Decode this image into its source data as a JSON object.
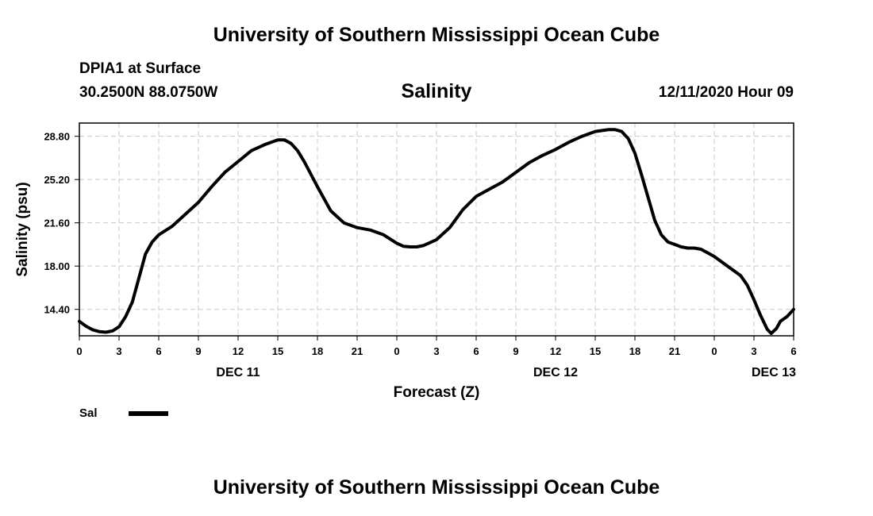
{
  "header": {
    "title": "University of Southern Mississippi Ocean Cube",
    "station": "DPIA1 at Surface",
    "coords": "30.2500N 88.0750W",
    "timestamp": "12/11/2020 Hour 09"
  },
  "footer": {
    "title": "University of Southern Mississippi Ocean Cube"
  },
  "colors": {
    "line": "#000000",
    "grid": "#c8c8c8",
    "background": "#ffffff"
  },
  "chart_data": {
    "type": "line",
    "title": "Salinity",
    "xlabel": "Forecast (Z)",
    "ylabel": "Salinity (psu)",
    "grid": true,
    "legend_position": "bottom-left",
    "xlim": [
      0,
      54
    ],
    "ylim": [
      12.2,
      29.9
    ],
    "x_ticks": [
      0,
      3,
      6,
      9,
      12,
      15,
      18,
      21,
      24,
      27,
      30,
      33,
      36,
      39,
      42,
      45,
      48,
      51,
      54
    ],
    "x_tick_labels": [
      "0",
      "3",
      "6",
      "9",
      "12",
      "15",
      "18",
      "21",
      "0",
      "3",
      "6",
      "9",
      "12",
      "15",
      "18",
      "21",
      "0",
      "3",
      "6"
    ],
    "y_ticks": [
      14.4,
      18.0,
      21.6,
      25.2,
      28.8
    ],
    "y_tick_labels": [
      "14.40",
      "18.00",
      "21.60",
      "25.20",
      "28.80"
    ],
    "day_labels": [
      {
        "x": 12,
        "label": "DEC 11"
      },
      {
        "x": 36,
        "label": "DEC 12"
      },
      {
        "x": 52.5,
        "label": "DEC 13"
      }
    ],
    "series": [
      {
        "name": "Sal",
        "points": [
          [
            0,
            13.4
          ],
          [
            0.5,
            13.0
          ],
          [
            1,
            12.7
          ],
          [
            1.5,
            12.55
          ],
          [
            2,
            12.5
          ],
          [
            2.5,
            12.6
          ],
          [
            3,
            12.95
          ],
          [
            3.5,
            13.8
          ],
          [
            4,
            15.0
          ],
          [
            4.5,
            17.0
          ],
          [
            5,
            19.0
          ],
          [
            5.5,
            20.0
          ],
          [
            6,
            20.6
          ],
          [
            7,
            21.3
          ],
          [
            8,
            22.3
          ],
          [
            9,
            23.3
          ],
          [
            10,
            24.6
          ],
          [
            11,
            25.8
          ],
          [
            12,
            26.7
          ],
          [
            13,
            27.6
          ],
          [
            14,
            28.1
          ],
          [
            15,
            28.5
          ],
          [
            15.5,
            28.5
          ],
          [
            16,
            28.2
          ],
          [
            16.5,
            27.6
          ],
          [
            17,
            26.7
          ],
          [
            18,
            24.6
          ],
          [
            19,
            22.6
          ],
          [
            20,
            21.6
          ],
          [
            21,
            21.2
          ],
          [
            22,
            21.0
          ],
          [
            23,
            20.6
          ],
          [
            24,
            19.9
          ],
          [
            24.5,
            19.65
          ],
          [
            25,
            19.6
          ],
          [
            25.5,
            19.6
          ],
          [
            26,
            19.7
          ],
          [
            27,
            20.2
          ],
          [
            28,
            21.2
          ],
          [
            29,
            22.7
          ],
          [
            30,
            23.8
          ],
          [
            31,
            24.4
          ],
          [
            32,
            25.0
          ],
          [
            33,
            25.8
          ],
          [
            34,
            26.6
          ],
          [
            35,
            27.2
          ],
          [
            36,
            27.7
          ],
          [
            37,
            28.3
          ],
          [
            38,
            28.8
          ],
          [
            39,
            29.2
          ],
          [
            40,
            29.35
          ],
          [
            40.5,
            29.35
          ],
          [
            41,
            29.2
          ],
          [
            41.5,
            28.6
          ],
          [
            42,
            27.4
          ],
          [
            42.5,
            25.6
          ],
          [
            43,
            23.7
          ],
          [
            43.5,
            21.8
          ],
          [
            44,
            20.6
          ],
          [
            44.5,
            20.0
          ],
          [
            45,
            19.8
          ],
          [
            45.5,
            19.6
          ],
          [
            46,
            19.5
          ],
          [
            46.5,
            19.5
          ],
          [
            47,
            19.4
          ],
          [
            47.5,
            19.1
          ],
          [
            48,
            18.8
          ],
          [
            49,
            18.0
          ],
          [
            50,
            17.2
          ],
          [
            50.5,
            16.4
          ],
          [
            51,
            15.2
          ],
          [
            51.5,
            13.9
          ],
          [
            52,
            12.75
          ],
          [
            52.3,
            12.4
          ],
          [
            52.7,
            12.8
          ],
          [
            53,
            13.4
          ],
          [
            53.5,
            13.8
          ],
          [
            54,
            14.4
          ]
        ]
      }
    ]
  }
}
